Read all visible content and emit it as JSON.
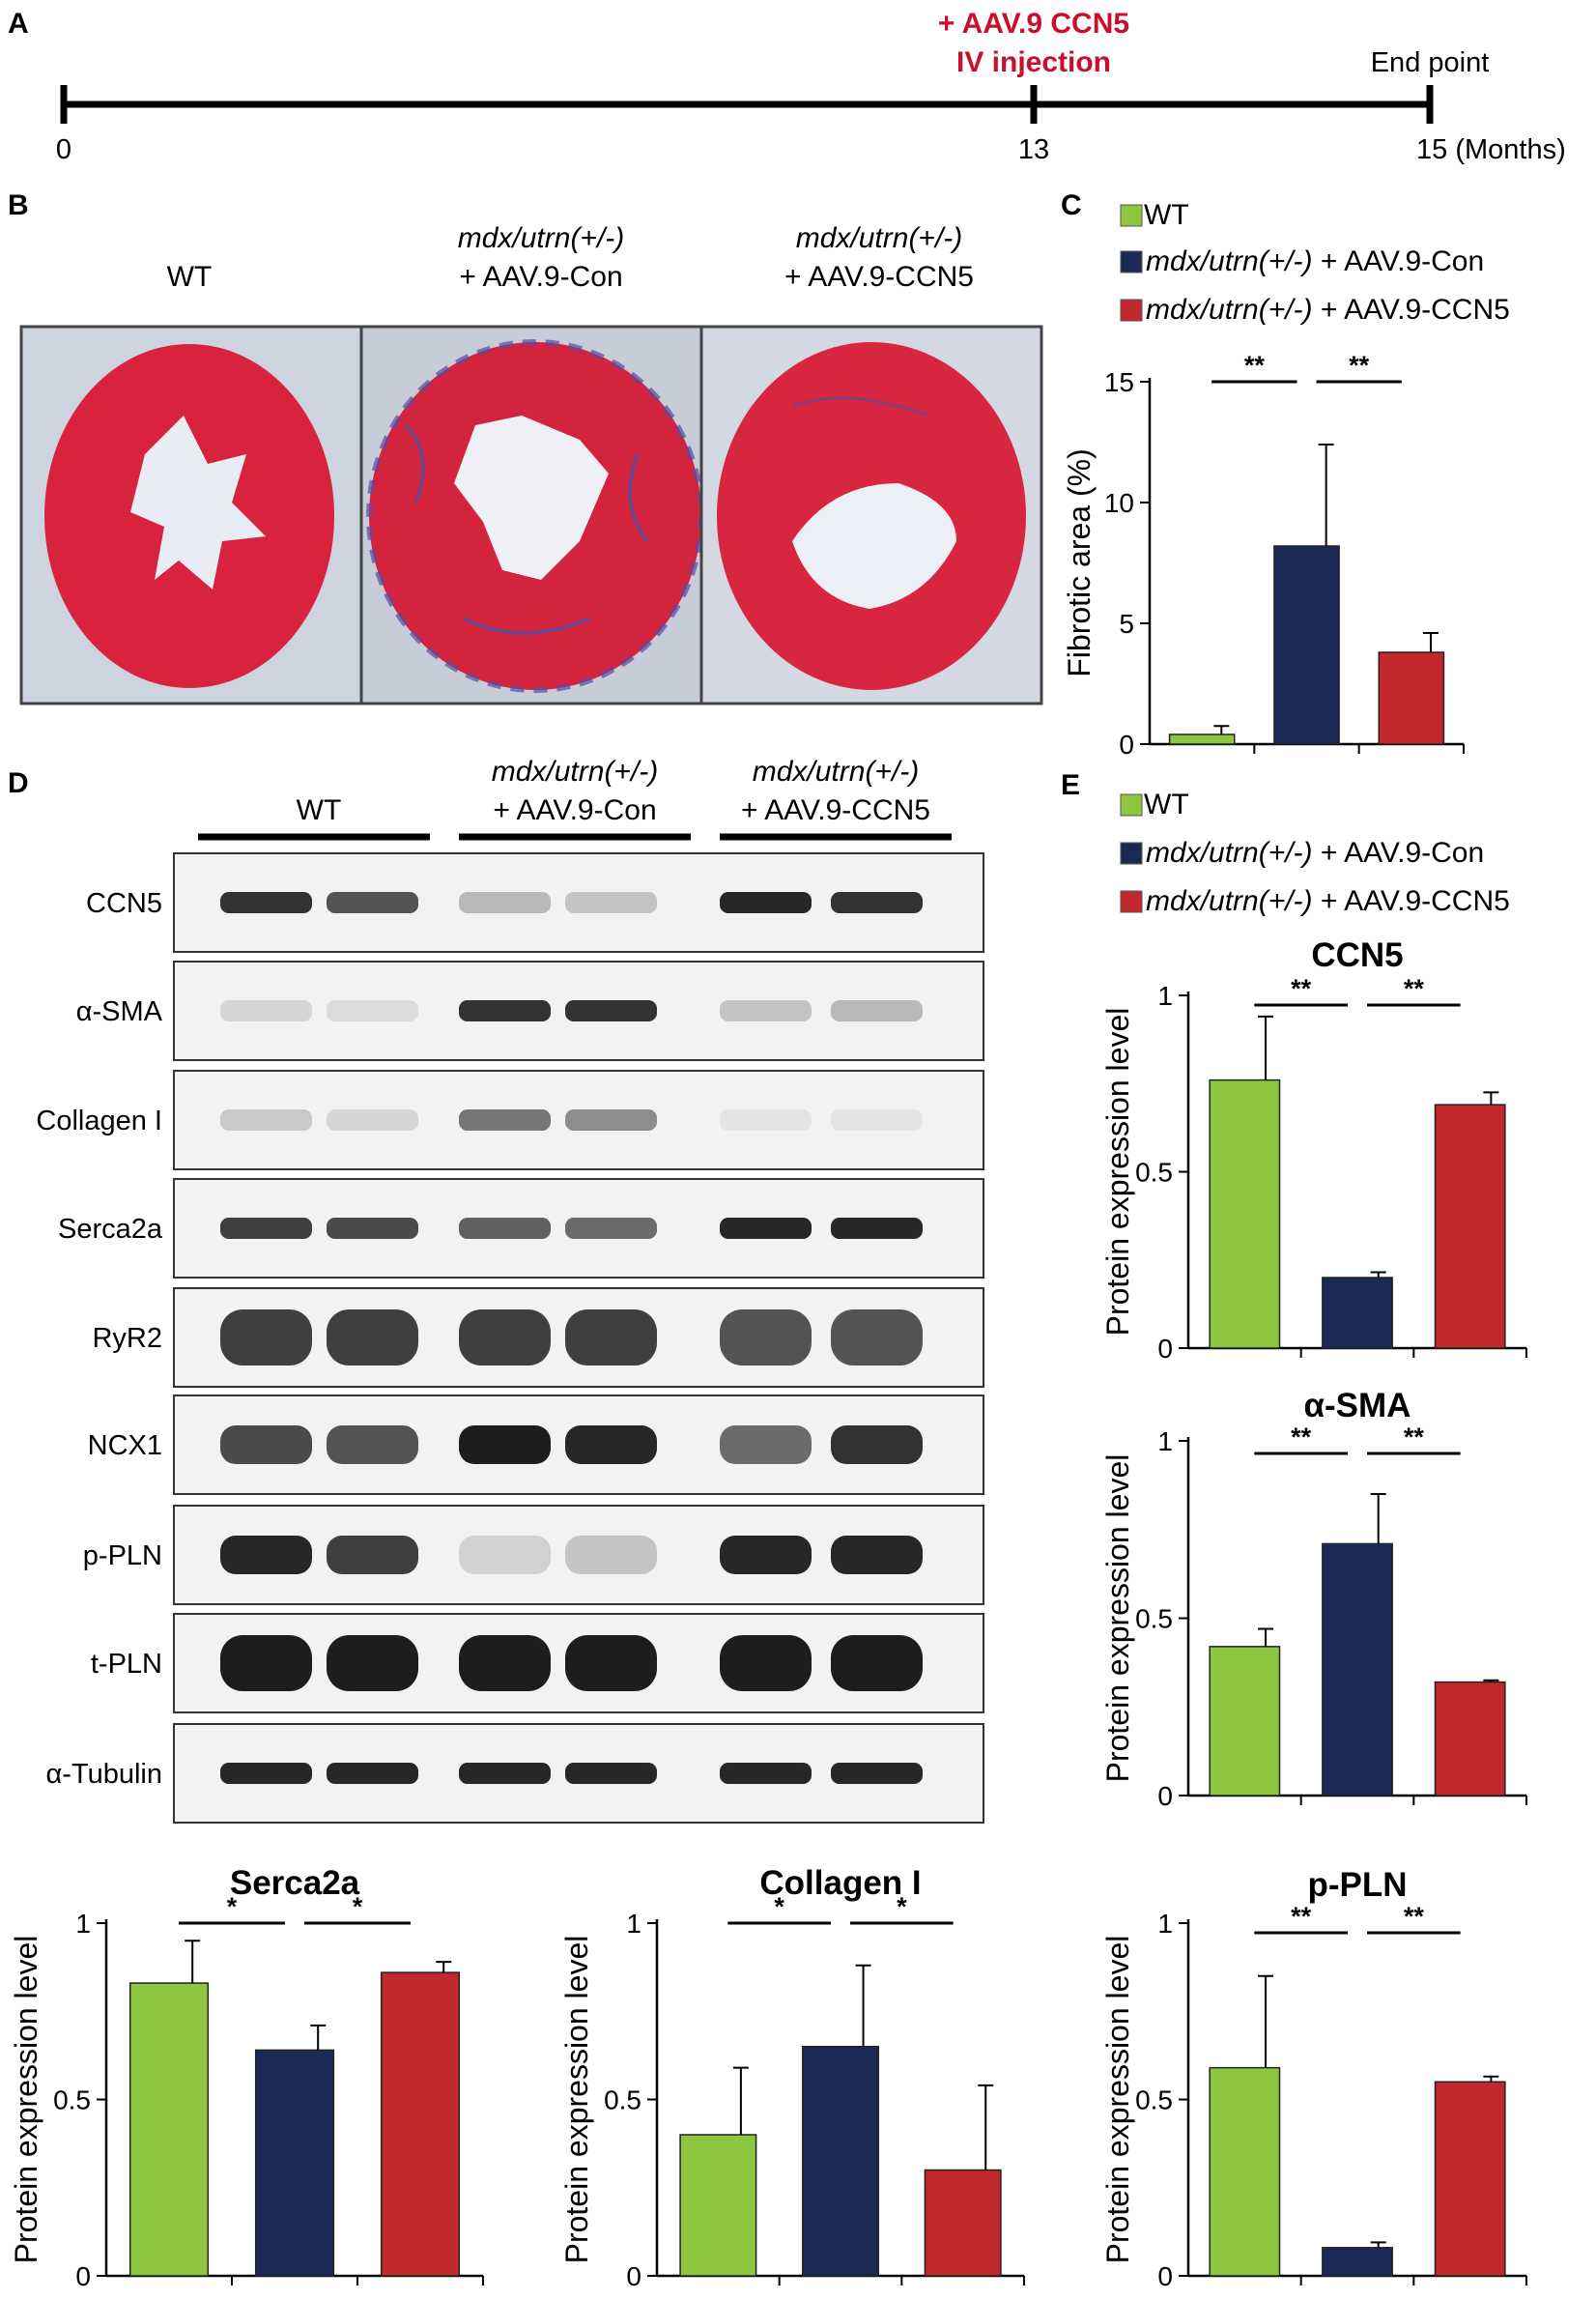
{
  "panels": {
    "a": "A",
    "b": "B",
    "c": "C",
    "d": "D",
    "e": "E"
  },
  "timeline": {
    "ticks": [
      {
        "label": "0"
      },
      {
        "label": "13"
      },
      {
        "label": "15 (Months)"
      }
    ],
    "injection_line1": "+ AAV.9 CCN5",
    "injection_line2": "IV injection",
    "end_point": "End point",
    "injection_color": "#c8102e"
  },
  "groups": {
    "wt": "WT",
    "mdx_italic": "mdx/utrn(+/-)",
    "con_suffix": "+ AAV.9-Con",
    "ccn5_suffix": "+ AAV.9-CCN5"
  },
  "legend": [
    {
      "italic": "",
      "text": "WT",
      "color": "#8dc63f"
    },
    {
      "italic": "mdx/utrn(+/-)",
      "text": " + AAV.9-Con",
      "color": "#1b2a55"
    },
    {
      "italic": "mdx/utrn(+/-)",
      "text": " + AAV.9-CCN5",
      "color": "#c1272d"
    }
  ],
  "colors": {
    "wt": "#8dc63f",
    "con": "#1b2a55",
    "ccn5": "#c1272d",
    "tissue": "#d8263f",
    "fibrosis": "#5a4aa0",
    "slide_bg": "#c9cfdc"
  },
  "blot": {
    "bands": [
      {
        "label": "CCN5",
        "intensities": [
          0.85,
          0.7,
          0.25,
          0.2,
          0.9,
          0.85
        ]
      },
      {
        "label": "α-SMA",
        "intensities": [
          0.12,
          0.1,
          0.85,
          0.85,
          0.2,
          0.25
        ]
      },
      {
        "label": "Collagen I",
        "intensities": [
          0.18,
          0.12,
          0.55,
          0.45,
          0.06,
          0.06
        ]
      },
      {
        "label": "Serca2a",
        "intensities": [
          0.8,
          0.75,
          0.65,
          0.6,
          0.9,
          0.9
        ]
      },
      {
        "label": "RyR2",
        "intensities": [
          0.8,
          0.8,
          0.8,
          0.8,
          0.7,
          0.7
        ]
      },
      {
        "label": "NCX1",
        "intensities": [
          0.75,
          0.7,
          0.95,
          0.9,
          0.6,
          0.85
        ]
      },
      {
        "label": "p-PLN",
        "intensities": [
          0.9,
          0.8,
          0.15,
          0.2,
          0.9,
          0.9
        ]
      },
      {
        "label": "t-PLN",
        "intensities": [
          0.95,
          0.95,
          0.95,
          0.95,
          0.95,
          0.95
        ]
      },
      {
        "label": "α-Tubulin",
        "intensities": [
          0.9,
          0.9,
          0.9,
          0.9,
          0.9,
          0.9
        ]
      }
    ]
  },
  "chart_data": [
    {
      "id": "C",
      "type": "bar",
      "title": "",
      "ylabel": "Fibrotic area (%)",
      "ylim": [
        0,
        15
      ],
      "yticks": [
        "0",
        "5",
        "10",
        "15"
      ],
      "values": [
        0.4,
        8.2,
        3.8
      ],
      "errors": [
        0.35,
        4.2,
        0.8
      ],
      "significance": [
        {
          "from": 0,
          "to": 1,
          "label": "**"
        },
        {
          "from": 1,
          "to": 2,
          "label": "**"
        }
      ]
    },
    {
      "id": "E1",
      "type": "bar",
      "title": "CCN5",
      "ylabel": "Protein expression level",
      "ylim": [
        0,
        1
      ],
      "yticks": [
        "0",
        "0.5",
        "1"
      ],
      "values": [
        0.76,
        0.2,
        0.69
      ],
      "errors": [
        0.18,
        0.015,
        0.035
      ],
      "significance": [
        {
          "from": 0,
          "to": 1,
          "label": "**"
        },
        {
          "from": 1,
          "to": 2,
          "label": "**"
        }
      ]
    },
    {
      "id": "E2",
      "type": "bar",
      "title": "α-SMA",
      "ylabel": "Protein expression level",
      "ylim": [
        0,
        1
      ],
      "yticks": [
        "0",
        "0.5",
        "1"
      ],
      "values": [
        0.42,
        0.71,
        0.32
      ],
      "errors": [
        0.05,
        0.14,
        0.005
      ],
      "significance": [
        {
          "from": 0,
          "to": 1,
          "label": "**"
        },
        {
          "from": 1,
          "to": 2,
          "label": "**"
        }
      ]
    },
    {
      "id": "E3",
      "type": "bar",
      "title": "p-PLN",
      "ylabel": "Protein expression level",
      "ylim": [
        0,
        1
      ],
      "yticks": [
        "0",
        "0.5",
        "1"
      ],
      "values": [
        0.59,
        0.08,
        0.55
      ],
      "errors": [
        0.26,
        0.015,
        0.015
      ],
      "significance": [
        {
          "from": 0,
          "to": 1,
          "label": "**"
        },
        {
          "from": 1,
          "to": 2,
          "label": "**"
        }
      ]
    },
    {
      "id": "D1",
      "type": "bar",
      "title": "Serca2a",
      "ylabel": "Protein expression level",
      "ylim": [
        0,
        1
      ],
      "yticks": [
        "0",
        "0.5",
        "1"
      ],
      "values": [
        0.83,
        0.64,
        0.86
      ],
      "errors": [
        0.12,
        0.07,
        0.03
      ],
      "significance": [
        {
          "from": 0,
          "to": 1,
          "label": "*"
        },
        {
          "from": 1,
          "to": 2,
          "label": "*"
        }
      ]
    },
    {
      "id": "D2",
      "type": "bar",
      "title": "Collagen I",
      "ylabel": "Protein expression level",
      "ylim": [
        0,
        1
      ],
      "yticks": [
        "0",
        "0.5",
        "1"
      ],
      "values": [
        0.4,
        0.65,
        0.3
      ],
      "errors": [
        0.19,
        0.23,
        0.24
      ],
      "significance": [
        {
          "from": 0,
          "to": 1,
          "label": "*"
        },
        {
          "from": 1,
          "to": 2,
          "label": "*"
        }
      ]
    }
  ]
}
